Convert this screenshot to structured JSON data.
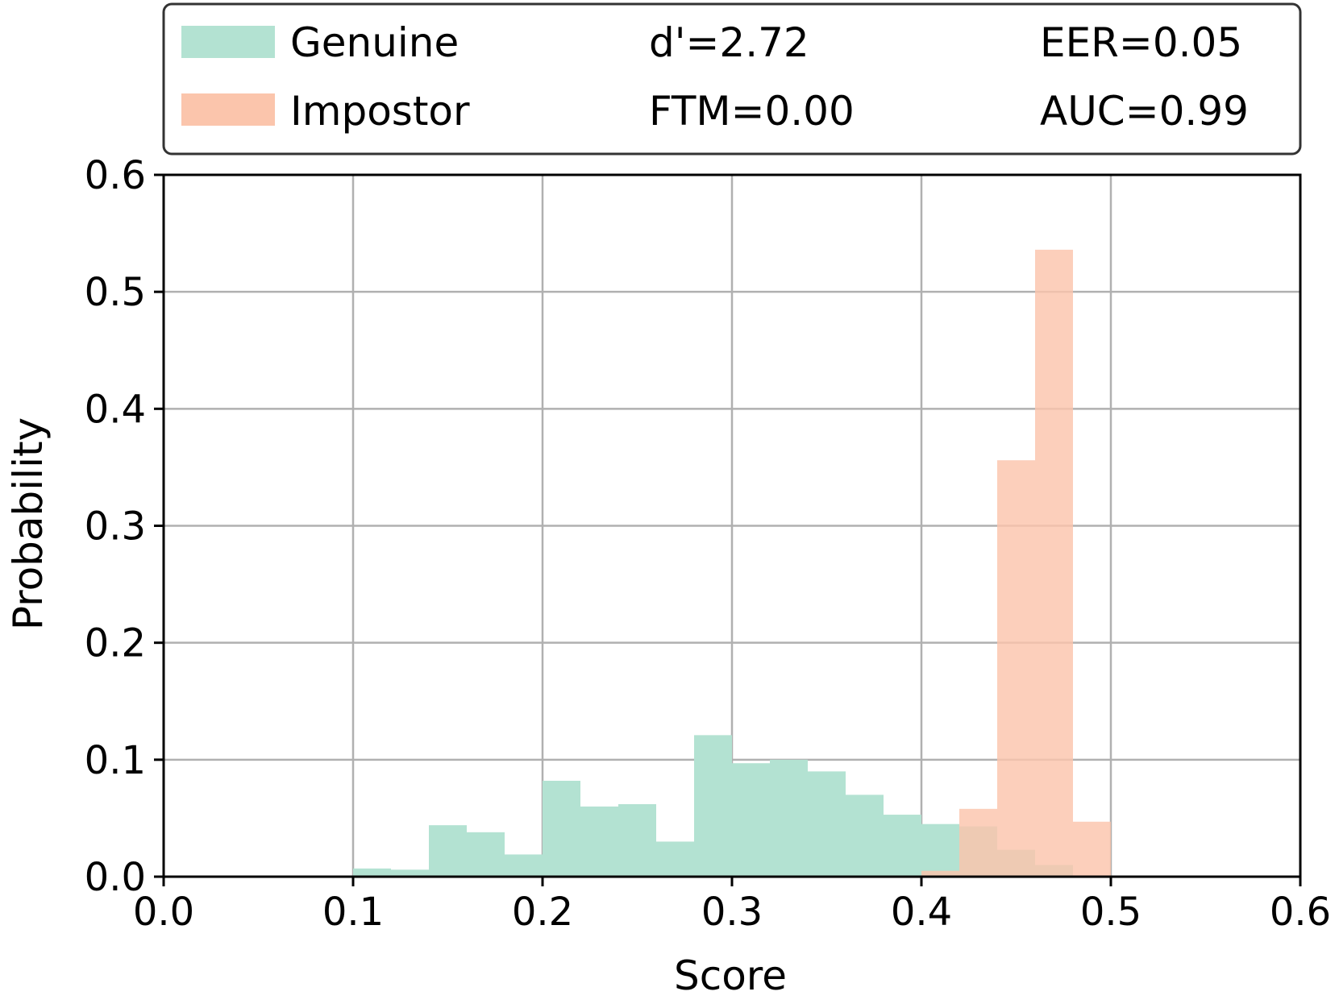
{
  "chart_data": {
    "type": "bar",
    "xlabel": "Score",
    "ylabel": "Probability",
    "xlim": [
      0.0,
      0.6
    ],
    "ylim": [
      0.0,
      0.6
    ],
    "xticks": [
      "0.0",
      "0.1",
      "0.2",
      "0.3",
      "0.4",
      "0.5",
      "0.6"
    ],
    "yticks": [
      "0.0",
      "0.1",
      "0.2",
      "0.3",
      "0.4",
      "0.5",
      "0.6"
    ],
    "grid": true,
    "legend_position": "top",
    "bin_width": 0.02,
    "series": [
      {
        "name": "Genuine",
        "color": "#b3e2d2",
        "bins": [
          {
            "x": 0.1,
            "y": 0.007
          },
          {
            "x": 0.12,
            "y": 0.006
          },
          {
            "x": 0.14,
            "y": 0.044
          },
          {
            "x": 0.16,
            "y": 0.038
          },
          {
            "x": 0.18,
            "y": 0.019
          },
          {
            "x": 0.2,
            "y": 0.082
          },
          {
            "x": 0.22,
            "y": 0.06
          },
          {
            "x": 0.24,
            "y": 0.062
          },
          {
            "x": 0.26,
            "y": 0.03
          },
          {
            "x": 0.28,
            "y": 0.121
          },
          {
            "x": 0.3,
            "y": 0.097
          },
          {
            "x": 0.32,
            "y": 0.1
          },
          {
            "x": 0.34,
            "y": 0.09
          },
          {
            "x": 0.36,
            "y": 0.07
          },
          {
            "x": 0.38,
            "y": 0.053
          },
          {
            "x": 0.4,
            "y": 0.045
          },
          {
            "x": 0.42,
            "y": 0.043
          },
          {
            "x": 0.44,
            "y": 0.023
          },
          {
            "x": 0.46,
            "y": 0.01
          }
        ]
      },
      {
        "name": "Impostor",
        "color": "#fbc5ac",
        "bins": [
          {
            "x": 0.4,
            "y": 0.005
          },
          {
            "x": 0.42,
            "y": 0.058
          },
          {
            "x": 0.44,
            "y": 0.356
          },
          {
            "x": 0.46,
            "y": 0.536
          },
          {
            "x": 0.48,
            "y": 0.047
          }
        ]
      }
    ],
    "legend": {
      "entries": [
        "Genuine",
        "Impostor"
      ],
      "stats": [
        "d'=2.72",
        "EER=0.05",
        "FTM=0.00",
        "AUC=0.99"
      ]
    }
  }
}
